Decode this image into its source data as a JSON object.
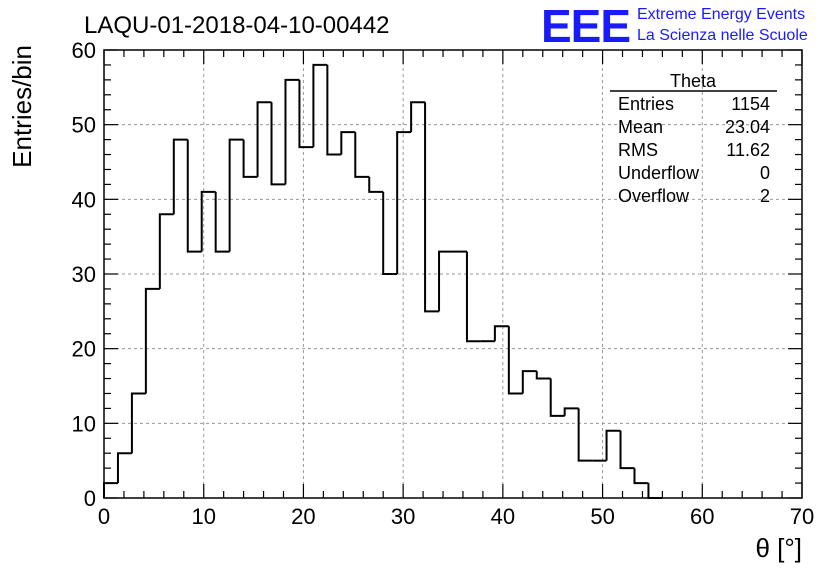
{
  "page_title": "LAQU-01-2018-04-10-00442",
  "logo": {
    "mark": "EEE",
    "line1": "Extreme Energy Events",
    "line2": "La Scienza nelle Scuole",
    "color": "#1a1aff"
  },
  "stats_box": {
    "title": "Theta",
    "rows": [
      {
        "label": "Entries",
        "value": "1154"
      },
      {
        "label": "Mean",
        "value": "23.04"
      },
      {
        "label": "RMS",
        "value": "11.62"
      },
      {
        "label": "Underflow",
        "value": "0"
      },
      {
        "label": "Overflow",
        "value": "2"
      }
    ]
  },
  "chart_data": {
    "type": "histogram",
    "title": "LAQU-01-2018-04-10-00442",
    "xlabel": "θ [°]",
    "ylabel": "Entries/bin",
    "xlim": [
      0,
      70
    ],
    "ylim": [
      0,
      60
    ],
    "bin_width": 1.4,
    "bin_edges_start": 0,
    "values": [
      2,
      6,
      14,
      28,
      38,
      48,
      33,
      41,
      33,
      48,
      43,
      53,
      42,
      56,
      47,
      58,
      46,
      49,
      43,
      41,
      30,
      49,
      53,
      25,
      33,
      33,
      21,
      21,
      23,
      14,
      17,
      16,
      11,
      12,
      5,
      5,
      9,
      4,
      2,
      0
    ],
    "x_ticks": [
      0,
      10,
      20,
      30,
      40,
      50,
      60,
      70
    ],
    "y_ticks": [
      0,
      10,
      20,
      30,
      40,
      50,
      60
    ],
    "grid": true,
    "line_color": "#000000",
    "grid_color": "#9a9a9a"
  }
}
